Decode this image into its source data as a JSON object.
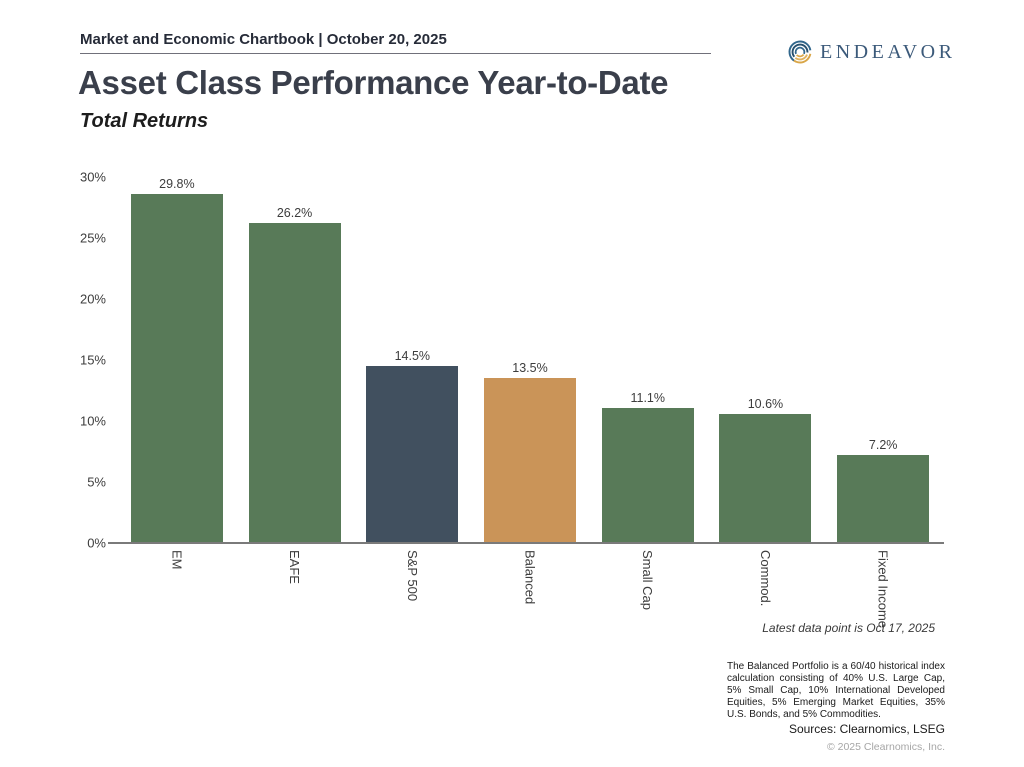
{
  "header": {
    "chartbook_label": "Market and Economic Chartbook | October 20, 2025",
    "logo_text": "ENDEAVOR"
  },
  "title": "Asset Class Performance Year-to-Date",
  "subtitle": "Total Returns",
  "chart_data": {
    "type": "bar",
    "title": "Asset Class Performance Year-to-Date",
    "subtitle": "Total Returns",
    "categories": [
      "EM",
      "EAFE",
      "S&P 500",
      "Balanced",
      "Small Cap",
      "Commod.",
      "Fixed Income"
    ],
    "values": [
      29.8,
      26.2,
      14.5,
      13.5,
      11.1,
      10.6,
      7.2
    ],
    "value_labels": [
      "29.8%",
      "26.2%",
      "14.5%",
      "13.5%",
      "11.1%",
      "10.6%",
      "7.2%"
    ],
    "bar_colors": [
      "#587a58",
      "#587a58",
      "#41505f",
      "#ca9458",
      "#587a58",
      "#587a58",
      "#587a58"
    ],
    "xlabel": "",
    "ylabel": "",
    "ylim": [
      0,
      30
    ],
    "yticks": [
      "30%",
      "25%",
      "20%",
      "15%",
      "10%",
      "5%",
      "0%"
    ],
    "grid": false,
    "legend": false
  },
  "notes": {
    "latest_data": "Latest data point is Oct 17, 2025",
    "footnote": "The Balanced Portfolio is a 60/40 historical index calculation consisting of 40% U.S. Large Cap, 5% Small Cap, 10% International Developed Equities, 5% Emerging Market Equities, 35% U.S. Bonds, and 5% Commodities.",
    "sources": "Sources: Clearnomics, LSEG",
    "copyright": "© 2025 Clearnomics, Inc."
  },
  "colors": {
    "green": "#587a58",
    "slate": "#41505f",
    "orange": "#ca9458",
    "logo_blue": "#31678c",
    "logo_blue_dark": "#27506e",
    "logo_gold": "#d9a648",
    "axis_line": "#7a7a7a",
    "title_text": "#3a3f4b"
  }
}
